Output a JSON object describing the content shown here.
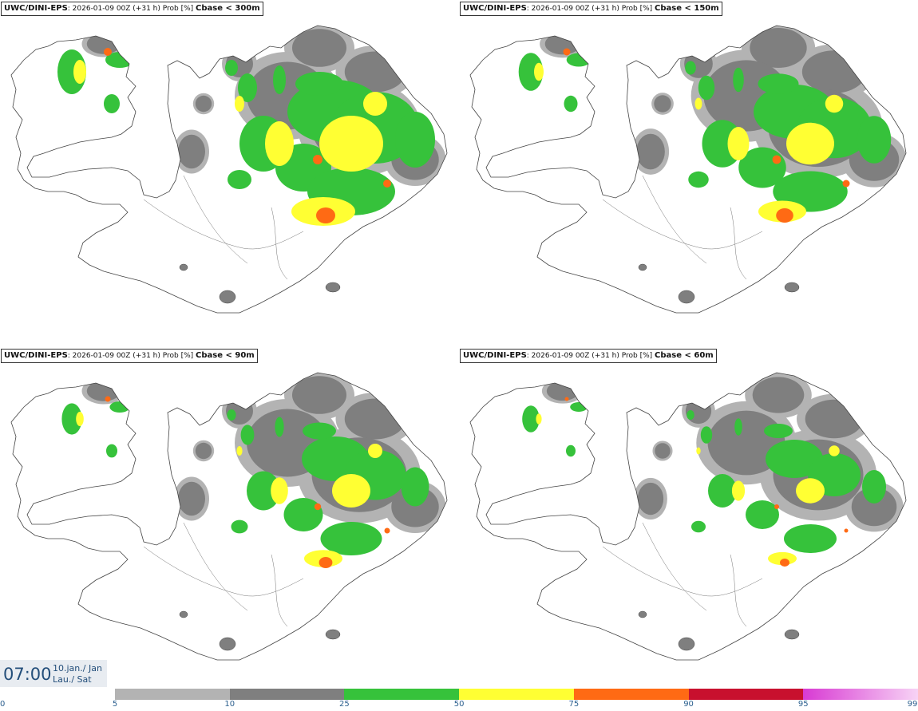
{
  "panels": [
    {
      "model": "UWC/DINI-EPS",
      "run_info": ": 2026-01-09 00Z (+31 h) Prob [%]",
      "field": "Cbase < 300m"
    },
    {
      "model": "UWC/DINI-EPS",
      "run_info": ": 2026-01-09 00Z (+31 h) Prob [%]",
      "field": "Cbase < 150m"
    },
    {
      "model": "UWC/DINI-EPS",
      "run_info": ": 2026-01-09 00Z (+31 h) Prob [%]",
      "field": "Cbase < 90m"
    },
    {
      "model": "UWC/DINI-EPS",
      "run_info": ": 2026-01-09 00Z (+31 h) Prob [%]",
      "field": "Cbase < 60m"
    }
  ],
  "time": {
    "clock": "07:00",
    "date_line1": "10.jan./ Jan",
    "date_line2": "Lau./ Sat"
  },
  "legend": {
    "ticks": [
      "0",
      "5",
      "10",
      "25",
      "50",
      "75",
      "90",
      "95",
      "99"
    ],
    "colors": [
      "#b3b3b3",
      "#7f7f7f",
      "#36c23b",
      "#ffff33",
      "#ff6a14",
      "#c8102e",
      "#d83ad3"
    ]
  },
  "map_colors": {
    "land_outline": "#444444",
    "light_gray": "#b3b3b3",
    "dark_gray": "#7f7f7f",
    "green": "#36c23b",
    "yellow": "#ffff33",
    "orange": "#ff6a14"
  }
}
